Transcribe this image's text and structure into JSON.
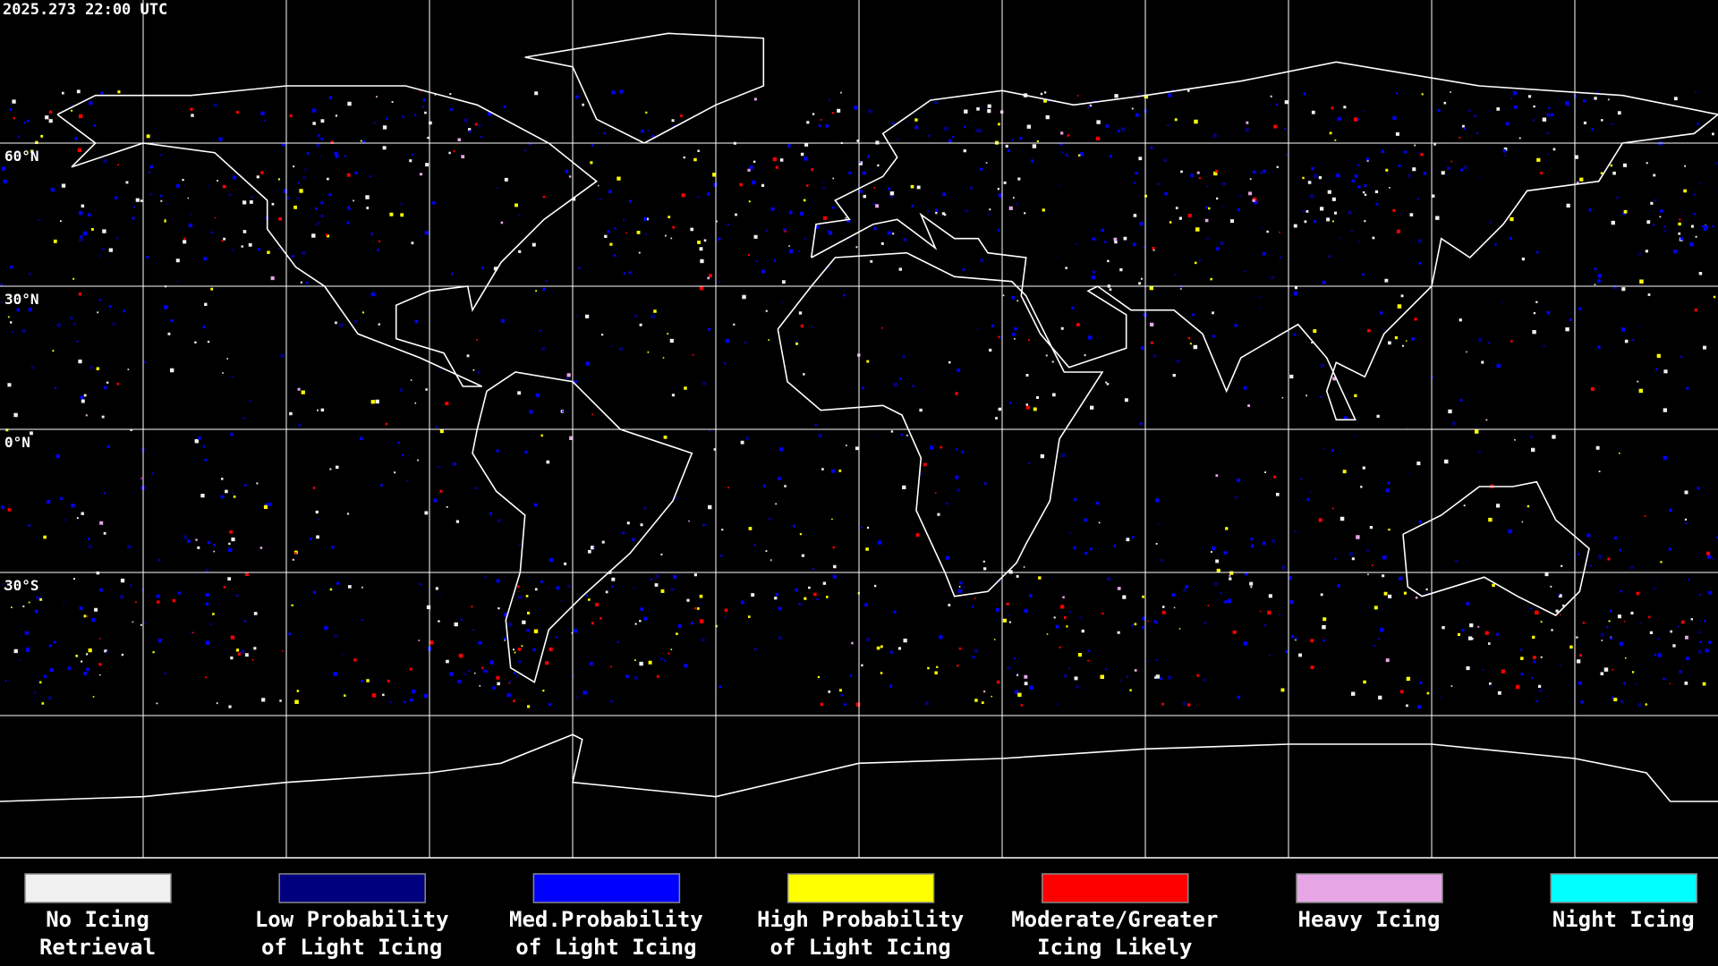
{
  "header": {
    "timestamp": "2025.273 22:00 UTC"
  },
  "map": {
    "latitude_labels": [
      "60°N",
      "30°N",
      "0°N",
      "30°S"
    ]
  },
  "legend": [
    {
      "lines": [
        "No Icing",
        "Retrieval"
      ],
      "color": "#f0f0f0"
    },
    {
      "lines": [
        "Low Probability",
        "of Light Icing"
      ],
      "color": "#00007f"
    },
    {
      "lines": [
        "Med.Probability",
        "of Light Icing"
      ],
      "color": "#0000ff"
    },
    {
      "lines": [
        "High Probability",
        "of Light Icing"
      ],
      "color": "#ffff00"
    },
    {
      "lines": [
        "Moderate/Greater",
        "Icing Likely"
      ],
      "color": "#ff0000"
    },
    {
      "lines": [
        "Heavy Icing"
      ],
      "color": "#e6a6e6"
    },
    {
      "lines": [
        "Night Icing"
      ],
      "color": "#00ffff"
    }
  ]
}
